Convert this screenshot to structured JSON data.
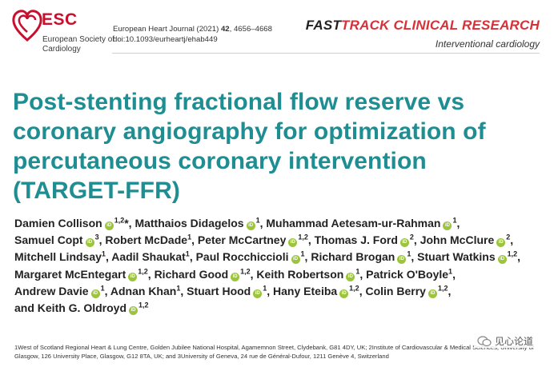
{
  "header": {
    "esc_name": "ESC",
    "esc_society": "European Society of Cardiology",
    "journal_citation_prefix": "European Heart Journal (2021) ",
    "journal_volume": "42",
    "journal_pages": ", 4656–4668",
    "journal_doi": "doi:10.1093/eurheartj/ehab449",
    "fasttrack_prefix": "FAST",
    "fasttrack_rest": "TRACK CLINICAL RESEARCH",
    "section": "Interventional cardiology"
  },
  "article": {
    "title": "Post-stenting fractional flow reserve vs coronary angiography for optimization of percutaneous coronary intervention (TARGET-FFR)",
    "orcid_label": "iD",
    "authors": [
      {
        "name": "Damien Collison",
        "orcid": true,
        "sup": "1,2",
        "suffix": "*, "
      },
      {
        "name": "Matthaios Didagelos",
        "orcid": true,
        "sup": "1",
        "suffix": ","
      },
      {
        "name": "Muhammad Aetesam-ur-Rahman",
        "orcid": true,
        "sup": "1",
        "suffix": ","
      },
      {
        "name": "Samuel Copt",
        "orcid": true,
        "sup": "3",
        "suffix": ","
      },
      {
        "name": "Robert McDade",
        "orcid": false,
        "sup": "1",
        "suffix": ","
      },
      {
        "name": "Peter McCartney",
        "orcid": true,
        "sup": "1,2",
        "suffix": ","
      },
      {
        "name": "Thomas J. Ford",
        "orcid": true,
        "sup": "2",
        "suffix": ","
      },
      {
        "name": "John McClure",
        "orcid": true,
        "sup": "2",
        "suffix": ","
      },
      {
        "name": "Mitchell Lindsay",
        "orcid": false,
        "sup": "1",
        "suffix": ","
      },
      {
        "name": "Aadil Shaukat",
        "orcid": false,
        "sup": "1",
        "suffix": ","
      },
      {
        "name": "Paul Rocchiccioli",
        "orcid": true,
        "sup": "1",
        "suffix": ","
      },
      {
        "name": "Richard Brogan",
        "orcid": true,
        "sup": "1",
        "suffix": ","
      },
      {
        "name": "Stuart Watkins",
        "orcid": true,
        "sup": "1,2",
        "suffix": ","
      },
      {
        "name": "Margaret McEntegart",
        "orcid": true,
        "sup": "1,2",
        "suffix": ","
      },
      {
        "name": "Richard Good",
        "orcid": true,
        "sup": "1,2",
        "suffix": ","
      },
      {
        "name": "Keith Robertson",
        "orcid": true,
        "sup": "1",
        "suffix": ","
      },
      {
        "name": "Patrick O'Boyle",
        "orcid": false,
        "sup": "1",
        "suffix": ","
      },
      {
        "name": "Andrew Davie",
        "orcid": true,
        "sup": "1",
        "suffix": ","
      },
      {
        "name": "Adnan Khan",
        "orcid": false,
        "sup": "1",
        "suffix": ","
      },
      {
        "name": "Stuart Hood",
        "orcid": true,
        "sup": "1",
        "suffix": ","
      },
      {
        "name": "Hany Eteiba",
        "orcid": true,
        "sup": "1,2",
        "suffix": ","
      },
      {
        "name": "Colin Berry",
        "orcid": true,
        "sup": "1,2",
        "suffix": ","
      },
      {
        "name": "Keith G. Oldroyd",
        "orcid": true,
        "sup": "1,2",
        "suffix": "",
        "prefix": "and "
      }
    ],
    "affiliations": "1West of Scotland Regional Heart & Lung Centre, Golden Jubilee National Hospital, Agamemnon Street, Clydebank, G81 4DY, UK; 2Institute of Cardiovascular & Medical Sciences, University of Glasgow, 126 University Place, Glasgow, G12 8TA, UK; and 3University of Geneva, 24 rue de Général-Dufour, 1211 Genève 4, Switzerland"
  },
  "watermark": {
    "text": "见心论道"
  },
  "colors": {
    "esc_red": "#c8102e",
    "title_teal": "#1e8e92",
    "fasttrack_red": "#d6323a",
    "orcid_green": "#9cc43c"
  }
}
